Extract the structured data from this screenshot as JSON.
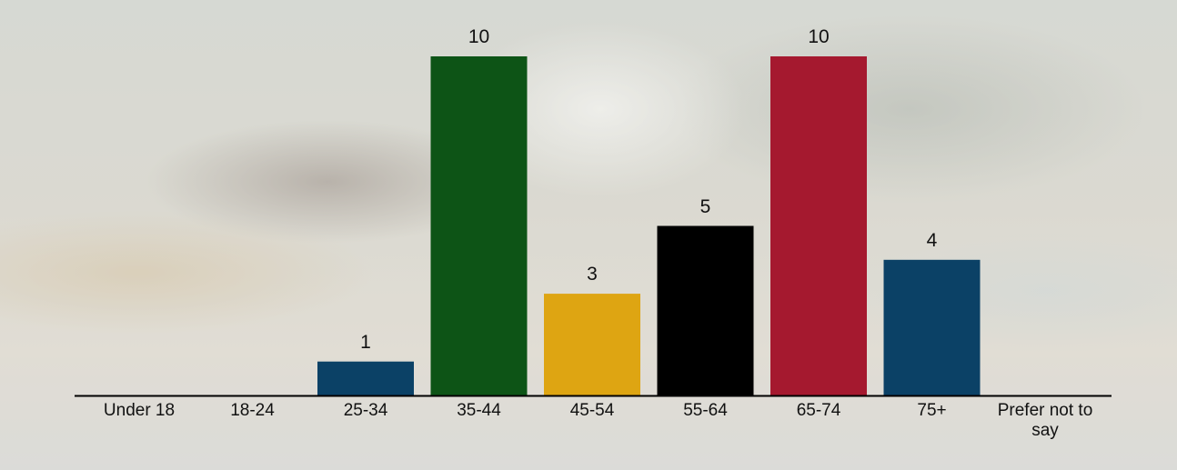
{
  "chart_data": {
    "type": "bar",
    "categories": [
      "Under 18",
      "18-24",
      "25-34",
      "35-44",
      "45-54",
      "55-64",
      "65-74",
      "75+",
      "Prefer not to say"
    ],
    "values": [
      null,
      null,
      1,
      10,
      3,
      5,
      10,
      4,
      null
    ],
    "colors": [
      "#0b4166",
      "#0b4166",
      "#0b4166",
      "#0d5416",
      "#dea512",
      "#000000",
      "#a5192f",
      "#0b4166",
      "#0b4166"
    ]
  }
}
